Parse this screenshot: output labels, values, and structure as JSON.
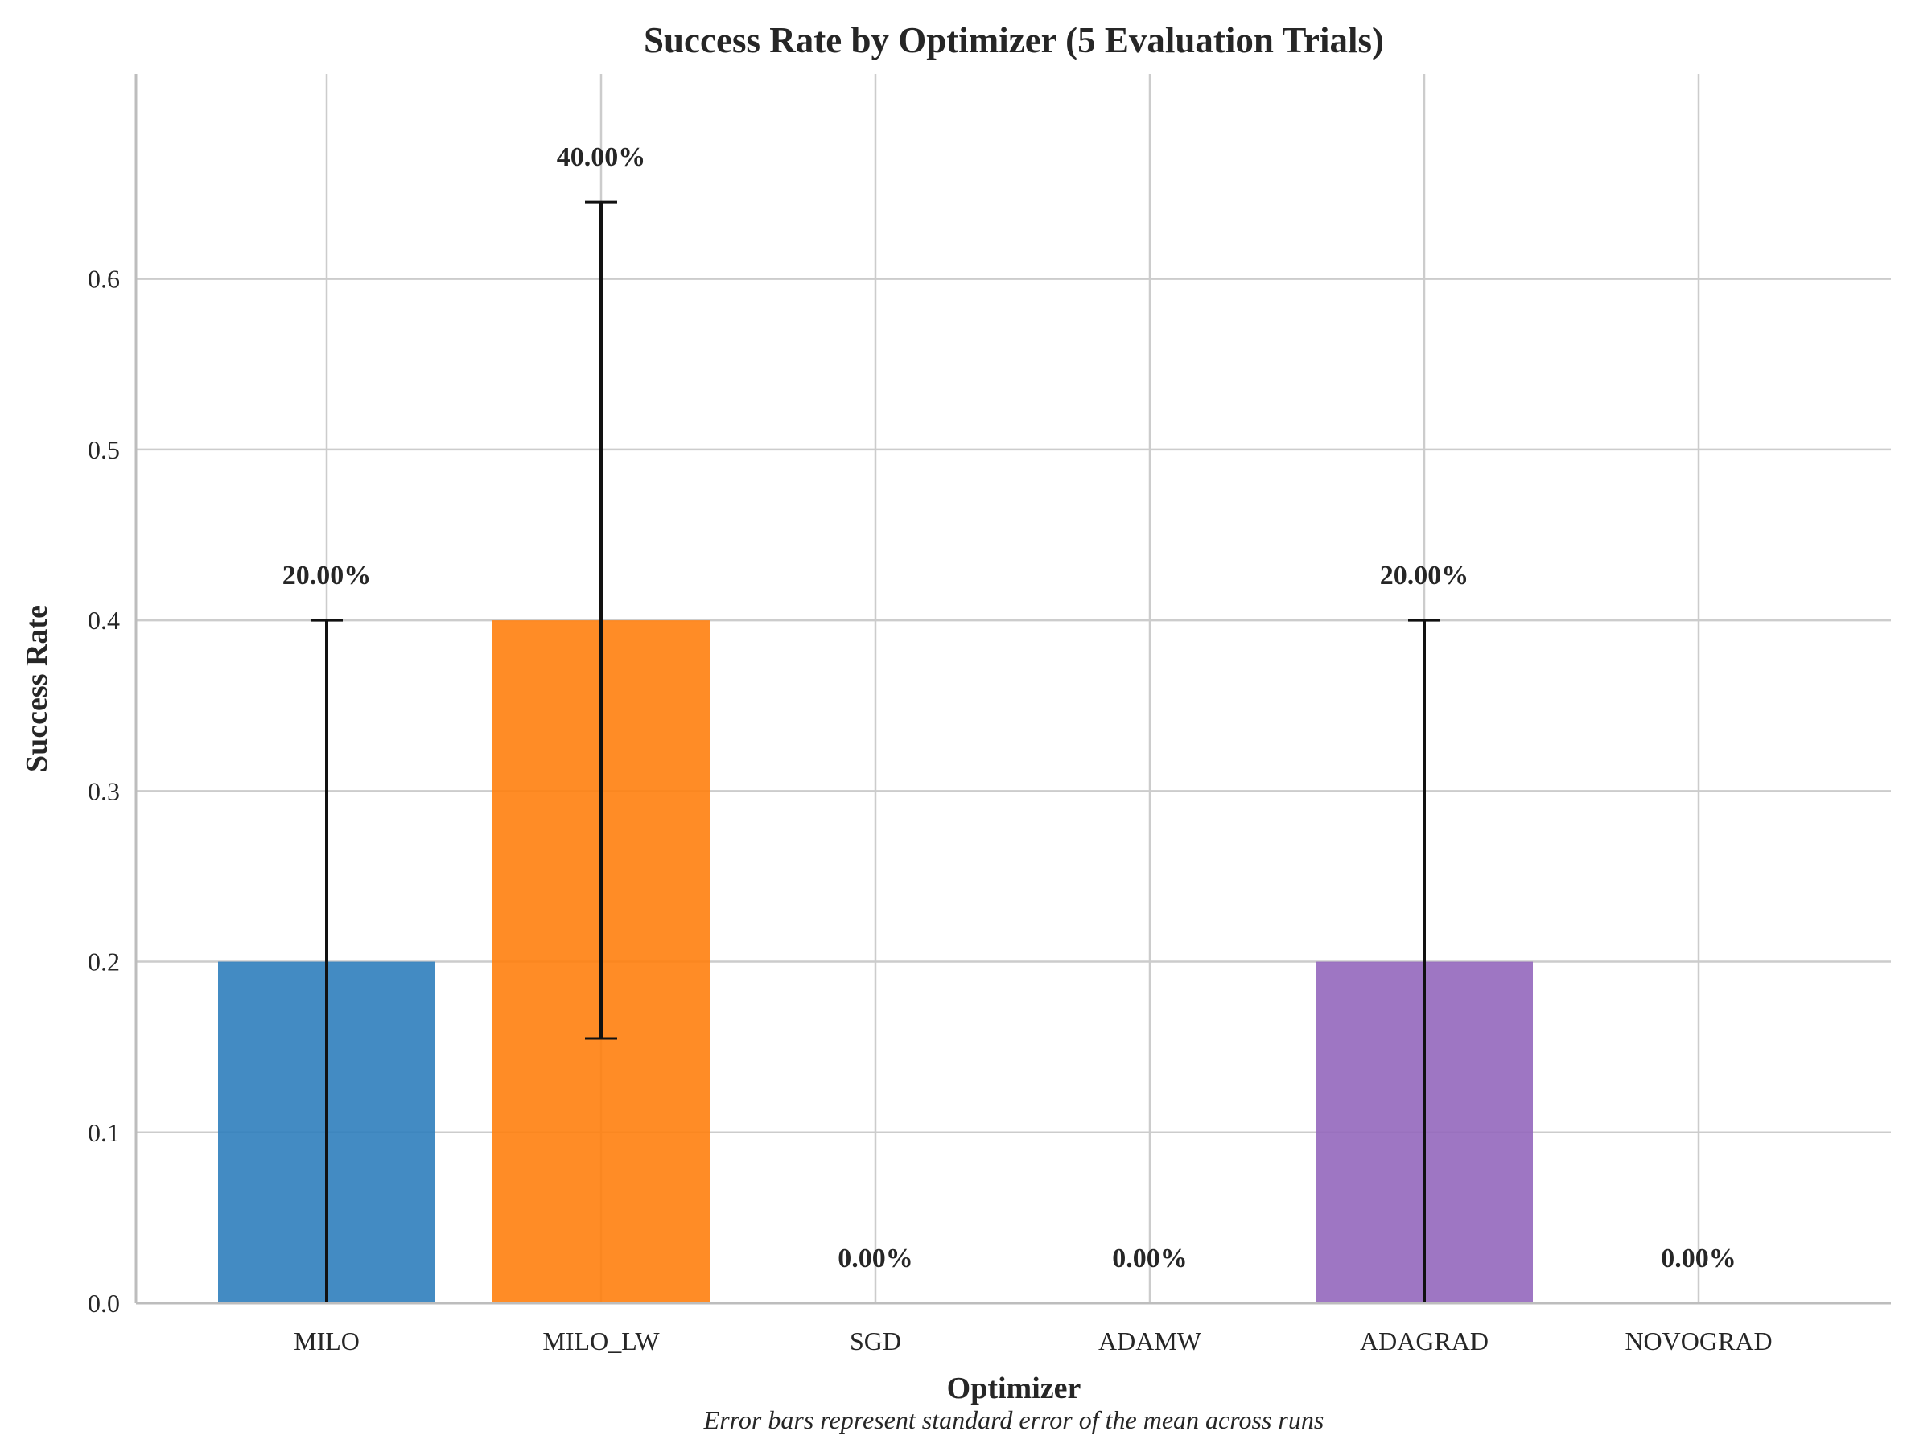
{
  "chart_data": {
    "type": "bar",
    "title": "Success Rate by Optimizer (5 Evaluation Trials)",
    "xlabel": "Optimizer",
    "ylabel": "Success Rate",
    "caption": "Error bars represent standard error of the mean across runs",
    "categories": [
      "MILO",
      "MILO_LW",
      "SGD",
      "ADAMW",
      "ADAGRAD",
      "NOVOGRAD"
    ],
    "values": [
      0.2,
      0.4,
      0.0,
      0.0,
      0.2,
      0.0
    ],
    "errors": [
      0.2,
      0.245,
      0.0,
      0.0,
      0.2,
      0.0
    ],
    "value_labels": [
      "20.00%",
      "40.00%",
      "0.00%",
      "0.00%",
      "20.00%",
      "0.00%"
    ],
    "colors": [
      "#2f7ebc",
      "#ff7f0e",
      "#2ca02c",
      "#d62728",
      "#9467bd",
      "#8c564b"
    ],
    "ylim": [
      0,
      0.72
    ],
    "yticks": [
      0.0,
      0.1,
      0.2,
      0.3,
      0.4,
      0.5,
      0.6
    ],
    "ytick_labels": [
      "0.0",
      "0.1",
      "0.2",
      "0.3",
      "0.4",
      "0.5",
      "0.6"
    ],
    "grid": true
  }
}
